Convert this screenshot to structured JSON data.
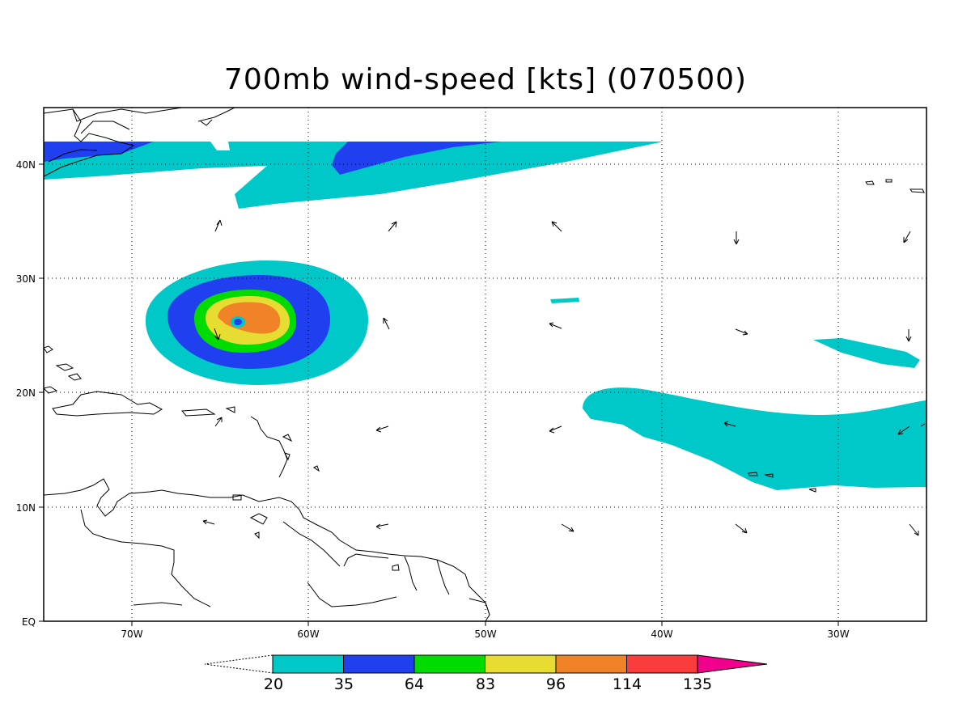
{
  "title": "700mb wind-speed [kts] (070500)",
  "lat_labels": [
    "40N",
    "30N",
    "20N",
    "10N",
    "EQ"
  ],
  "lon_labels": [
    "70W",
    "60W",
    "50W",
    "40W",
    "30W"
  ],
  "colorbar": {
    "levels": [
      "20",
      "35",
      "64",
      "83",
      "96",
      "114",
      "135"
    ],
    "colors": [
      "#00c8c8",
      "#2040f0",
      "#00dc00",
      "#e6dc32",
      "#f08228",
      "#fa3c3c",
      "#f0008c"
    ]
  },
  "map": {
    "lon_range": [
      -75,
      -25
    ],
    "lat_range": [
      0,
      45
    ],
    "grid": "dotted"
  }
}
